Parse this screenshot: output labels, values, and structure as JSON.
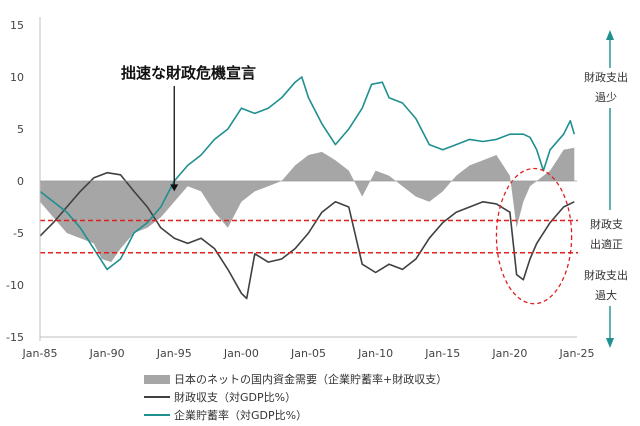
{
  "chart_data": {
    "type": "line",
    "title": "",
    "xlabel": "",
    "ylabel": "",
    "ylim": [
      -15,
      15
    ],
    "xlim": [
      "1985-01",
      "2025-01"
    ],
    "yticks": [
      15,
      10,
      5,
      0,
      -5,
      -10,
      -15
    ],
    "xticks": [
      {
        "label": "Jan-85",
        "date": 1985
      },
      {
        "label": "Jan-90",
        "date": 1990
      },
      {
        "label": "Jan-95",
        "date": 1995
      },
      {
        "label": "Jan-00",
        "date": 2000
      },
      {
        "label": "Jan-05",
        "date": 2005
      },
      {
        "label": "Jan-10",
        "date": 2010
      },
      {
        "label": "Jan-15",
        "date": 2015
      },
      {
        "label": "Jan-20",
        "date": 2020
      },
      {
        "label": "Jan-25",
        "date": 2025
      }
    ],
    "grid": false,
    "legend_position": "bottom",
    "series": [
      {
        "name": "日本のネットの国内資金需要（企業貯蓄率+財政収支）",
        "kind": "area",
        "color": "#a6a6a6",
        "points": [
          [
            1985.0,
            -2.0
          ],
          [
            1986.0,
            -3.5
          ],
          [
            1987.0,
            -5.0
          ],
          [
            1988.0,
            -5.5
          ],
          [
            1989.0,
            -6.0
          ],
          [
            1989.6,
            -7.5
          ],
          [
            1990.3,
            -7.8
          ],
          [
            1991.0,
            -6.5
          ],
          [
            1992.0,
            -5.0
          ],
          [
            1993.0,
            -4.5
          ],
          [
            1994.0,
            -3.5
          ],
          [
            1995.0,
            -2.0
          ],
          [
            1996.0,
            -0.5
          ],
          [
            1997.0,
            -1.0
          ],
          [
            1998.0,
            -3.0
          ],
          [
            1999.0,
            -4.5
          ],
          [
            2000.0,
            -2.0
          ],
          [
            2001.0,
            -1.0
          ],
          [
            2002.0,
            -0.5
          ],
          [
            2003.0,
            0.0
          ],
          [
            2004.0,
            1.5
          ],
          [
            2005.0,
            2.5
          ],
          [
            2006.0,
            2.8
          ],
          [
            2007.0,
            2.0
          ],
          [
            2008.0,
            1.0
          ],
          [
            2009.0,
            -1.5
          ],
          [
            2010.0,
            1.0
          ],
          [
            2011.0,
            0.5
          ],
          [
            2012.0,
            -0.5
          ],
          [
            2013.0,
            -1.5
          ],
          [
            2014.0,
            -2.0
          ],
          [
            2015.0,
            -1.0
          ],
          [
            2016.0,
            0.5
          ],
          [
            2017.0,
            1.5
          ],
          [
            2018.0,
            2.0
          ],
          [
            2019.0,
            2.5
          ],
          [
            2020.0,
            0.5
          ],
          [
            2020.5,
            -4.5
          ],
          [
            2021.0,
            -2.0
          ],
          [
            2021.5,
            -0.5
          ],
          [
            2022.0,
            0.0
          ],
          [
            2023.0,
            1.0
          ],
          [
            2023.5,
            2.0
          ],
          [
            2024.0,
            3.0
          ],
          [
            2024.8,
            3.2
          ]
        ]
      },
      {
        "name": "財政収支（対GDP比%）",
        "kind": "line",
        "color": "#404040",
        "points": [
          [
            1985.0,
            -5.3
          ],
          [
            1986.0,
            -4.0
          ],
          [
            1987.0,
            -2.5
          ],
          [
            1988.0,
            -1.0
          ],
          [
            1989.0,
            0.3
          ],
          [
            1990.0,
            0.8
          ],
          [
            1991.0,
            0.6
          ],
          [
            1992.0,
            -1.0
          ],
          [
            1993.0,
            -2.5
          ],
          [
            1994.0,
            -4.5
          ],
          [
            1995.0,
            -5.5
          ],
          [
            1996.0,
            -6.0
          ],
          [
            1997.0,
            -5.5
          ],
          [
            1998.0,
            -6.5
          ],
          [
            1999.0,
            -8.5
          ],
          [
            2000.0,
            -10.8
          ],
          [
            2000.4,
            -11.3
          ],
          [
            2001.0,
            -7.0
          ],
          [
            2002.0,
            -7.8
          ],
          [
            2003.0,
            -7.5
          ],
          [
            2004.0,
            -6.5
          ],
          [
            2005.0,
            -5.0
          ],
          [
            2006.0,
            -3.0
          ],
          [
            2007.0,
            -2.0
          ],
          [
            2008.0,
            -2.5
          ],
          [
            2009.0,
            -8.0
          ],
          [
            2010.0,
            -8.8
          ],
          [
            2011.0,
            -8.0
          ],
          [
            2012.0,
            -8.5
          ],
          [
            2013.0,
            -7.5
          ],
          [
            2014.0,
            -5.5
          ],
          [
            2015.0,
            -4.0
          ],
          [
            2016.0,
            -3.0
          ],
          [
            2017.0,
            -2.5
          ],
          [
            2018.0,
            -2.0
          ],
          [
            2019.0,
            -2.2
          ],
          [
            2020.0,
            -3.0
          ],
          [
            2020.5,
            -9.0
          ],
          [
            2021.0,
            -9.5
          ],
          [
            2021.5,
            -7.5
          ],
          [
            2022.0,
            -6.0
          ],
          [
            2023.0,
            -4.0
          ],
          [
            2024.0,
            -2.5
          ],
          [
            2024.8,
            -2.0
          ]
        ]
      },
      {
        "name": "企業貯蓄率（対GDP比%）",
        "kind": "line",
        "color": "#1f8f8f",
        "points": [
          [
            1985.0,
            -1.0
          ],
          [
            1986.0,
            -2.0
          ],
          [
            1987.0,
            -3.0
          ],
          [
            1988.0,
            -4.5
          ],
          [
            1989.0,
            -6.5
          ],
          [
            1990.0,
            -8.5
          ],
          [
            1991.0,
            -7.5
          ],
          [
            1992.0,
            -5.0
          ],
          [
            1993.0,
            -4.0
          ],
          [
            1994.0,
            -2.5
          ],
          [
            1995.0,
            0.0
          ],
          [
            1996.0,
            1.5
          ],
          [
            1997.0,
            2.5
          ],
          [
            1998.0,
            4.0
          ],
          [
            1999.0,
            5.0
          ],
          [
            2000.0,
            7.0
          ],
          [
            2001.0,
            6.5
          ],
          [
            2002.0,
            7.0
          ],
          [
            2003.0,
            8.0
          ],
          [
            2004.0,
            9.5
          ],
          [
            2004.5,
            10.0
          ],
          [
            2005.0,
            8.0
          ],
          [
            2006.0,
            5.5
          ],
          [
            2007.0,
            3.5
          ],
          [
            2008.0,
            5.0
          ],
          [
            2009.0,
            7.0
          ],
          [
            2009.7,
            9.3
          ],
          [
            2010.5,
            9.5
          ],
          [
            2011.0,
            8.0
          ],
          [
            2012.0,
            7.5
          ],
          [
            2013.0,
            6.0
          ],
          [
            2014.0,
            3.5
          ],
          [
            2015.0,
            3.0
          ],
          [
            2016.0,
            3.5
          ],
          [
            2017.0,
            4.0
          ],
          [
            2018.0,
            3.8
          ],
          [
            2019.0,
            4.0
          ],
          [
            2020.0,
            4.5
          ],
          [
            2020.5,
            4.5
          ],
          [
            2021.0,
            4.5
          ],
          [
            2021.5,
            4.2
          ],
          [
            2022.0,
            3.0
          ],
          [
            2022.5,
            1.0
          ],
          [
            2023.0,
            3.0
          ],
          [
            2024.0,
            4.5
          ],
          [
            2024.5,
            5.8
          ],
          [
            2024.8,
            4.5
          ]
        ]
      }
    ],
    "reference_lines": [
      {
        "y": -3.8,
        "color": "#e02020",
        "style": "dashed"
      },
      {
        "y": -6.9,
        "color": "#e02020",
        "style": "dashed"
      }
    ],
    "highlight_ellipse": {
      "center": [
        2021.8,
        -5.3
      ],
      "radius": [
        2.8,
        6.5
      ],
      "color": "#e02020",
      "style": "dashed"
    },
    "annotations": {
      "crisis_label": "拙速な財政危機宣言",
      "crisis_arrow_target": [
        1995.0,
        -1.0
      ],
      "side_top_line1": "財政支出",
      "side_top_line2": "過少",
      "side_mid_line1": "財政支",
      "side_mid_line2": "出適正",
      "side_bottom_line1": "財政支出",
      "side_bottom_line2": "過大",
      "side_arrow_color": "#1f8f8f"
    }
  }
}
